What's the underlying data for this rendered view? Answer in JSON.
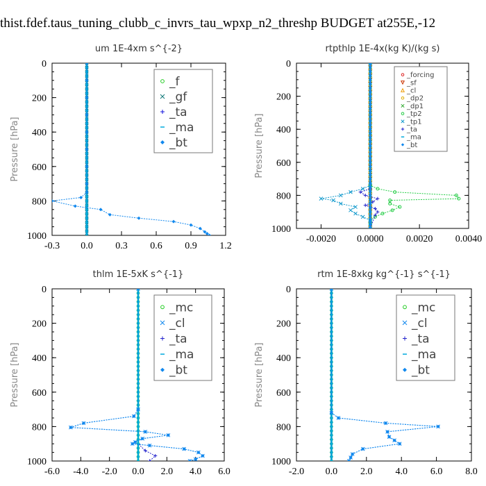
{
  "suptitle": "thist.fdef.taus_tuning_clubb_c_invrs_tau_wpxp_n2_threshp  BUDGET at255E,-12",
  "chart_data": [
    {
      "type": "line",
      "title": "um   1E-4xm s^{-2}",
      "ylabel": "Pressure [hPa]",
      "xlim": [
        -0.3,
        1.2
      ],
      "ylim": [
        1000,
        0
      ],
      "xticks": [
        "-0.3",
        "0.0",
        "0.3",
        "0.6",
        "0.9",
        "1.2"
      ],
      "xtick_values": [
        -0.3,
        0.0,
        0.3,
        0.6,
        0.9,
        1.2
      ],
      "yticks": [
        "0",
        "200",
        "400",
        "600",
        "800",
        "1000"
      ],
      "legend": "top-right",
      "series": [
        {
          "name": "_f",
          "color": "#22cc22",
          "marker": "circle",
          "y": [
            0,
            1000
          ],
          "x": [
            0,
            0
          ]
        },
        {
          "name": "_gf",
          "color": "#117777",
          "marker": "x",
          "y": [
            0,
            150,
            1000
          ],
          "x": [
            0,
            0,
            0
          ]
        },
        {
          "name": "_ta",
          "color": "#1111dd",
          "marker": "plus",
          "y": [
            0,
            750,
            800,
            830,
            860,
            900,
            950,
            1000
          ],
          "x": [
            0,
            0,
            0,
            0,
            0,
            0,
            0,
            0
          ]
        },
        {
          "name": "_ma",
          "color": "#00aadd",
          "marker": "dash",
          "y": [
            0,
            1000
          ],
          "x": [
            0,
            0
          ]
        },
        {
          "name": "_bt",
          "color": "#1188ee",
          "marker": "diamond",
          "y": [
            0,
            100,
            200,
            300,
            400,
            500,
            600,
            700,
            750,
            780,
            800,
            830,
            850,
            880,
            900,
            920,
            940,
            960,
            980,
            990,
            1000
          ],
          "x": [
            0,
            0,
            0,
            0,
            0,
            0,
            0,
            0,
            0,
            -0.05,
            -0.3,
            -0.1,
            0.12,
            0.2,
            0.45,
            0.75,
            0.9,
            0.98,
            1.02,
            1.04,
            1.06
          ]
        }
      ]
    },
    {
      "type": "line",
      "title": "rtpthlp   1E-4x(kg K)/(kg s)",
      "ylabel": "Pressure [hPa]",
      "xlim": [
        -0.003,
        0.004
      ],
      "ylim": [
        1000,
        0
      ],
      "xticks": [
        "-0.0020",
        "0.0000",
        "0.0020",
        "0.0040"
      ],
      "xtick_values": [
        -0.002,
        0.0,
        0.002,
        0.004
      ],
      "yticks": [
        "0",
        "200",
        "400",
        "600",
        "800",
        "1000"
      ],
      "legend": "top-right",
      "series": [
        {
          "name": "_forcing",
          "color": "#dd2222",
          "marker": "circle",
          "y": [
            0,
            1000
          ],
          "x": [
            0,
            0
          ]
        },
        {
          "name": "_sf",
          "color": "#cc3300",
          "marker": "triangle-down",
          "y": [
            0,
            1000
          ],
          "x": [
            0,
            0
          ]
        },
        {
          "name": "_cl",
          "color": "#ee9900",
          "marker": "triangle-up",
          "y": [
            0,
            1000
          ],
          "x": [
            0,
            0
          ]
        },
        {
          "name": "_dp2",
          "color": "#ddaa00",
          "marker": "circle",
          "y": [
            0,
            1000
          ],
          "x": [
            0,
            0
          ]
        },
        {
          "name": "_dp1",
          "color": "#33aa33",
          "marker": "x",
          "y": [
            0,
            1000
          ],
          "x": [
            0,
            0
          ]
        },
        {
          "name": "_tp2",
          "color": "#22cc44",
          "marker": "circle",
          "y": [
            0,
            740,
            760,
            780,
            800,
            820,
            830,
            850,
            870,
            890,
            910,
            930,
            950,
            970,
            1000
          ],
          "x": [
            0,
            0,
            0.0003,
            0.001,
            0.0035,
            0.0036,
            0.0008,
            0.0008,
            0.0012,
            0.0009,
            0.0005,
            0.0002,
            0,
            0,
            0
          ]
        },
        {
          "name": "_tp1",
          "color": "#1199cc",
          "marker": "x",
          "y": [
            0,
            740,
            760,
            780,
            800,
            820,
            830,
            850,
            870,
            890,
            910,
            930,
            950,
            970,
            1000
          ],
          "x": [
            0,
            0,
            -0.0003,
            -0.0008,
            -0.0012,
            -0.002,
            -0.0015,
            -0.0012,
            -0.0006,
            -0.0008,
            -0.0006,
            -0.0003,
            0,
            0,
            0
          ]
        },
        {
          "name": "_ta",
          "color": "#2222cc",
          "marker": "plus",
          "y": [
            0,
            760,
            780,
            800,
            820,
            840,
            860,
            880,
            900,
            920,
            1000
          ],
          "x": [
            0,
            0,
            -0.0004,
            -0.0002,
            0.0003,
            0.0001,
            -0.0002,
            0.0002,
            0.0003,
            0.0002,
            0
          ]
        },
        {
          "name": "_ma",
          "color": "#00aadd",
          "marker": "dash",
          "y": [
            0,
            1000
          ],
          "x": [
            0,
            0
          ]
        },
        {
          "name": "_bt",
          "color": "#1188ee",
          "marker": "diamond",
          "y": [
            0,
            1000
          ],
          "x": [
            0,
            0
          ]
        }
      ]
    },
    {
      "type": "line",
      "title": "thlm   1E-5xK s^{-1}",
      "ylabel": "Pressure [hPa]",
      "xlim": [
        -6.0,
        6.0
      ],
      "ylim": [
        1000,
        0
      ],
      "xticks": [
        "-6.0",
        "-4.0",
        "-2.0",
        "0.0",
        "2.0",
        "4.0",
        "6.0"
      ],
      "xtick_values": [
        -6,
        -4,
        -2,
        0,
        2,
        4,
        6
      ],
      "yticks": [
        "0",
        "200",
        "400",
        "600",
        "800",
        "1000"
      ],
      "legend": "top-right",
      "series": [
        {
          "name": "_mc",
          "color": "#22cc22",
          "marker": "circle",
          "y": [
            0,
            1000
          ],
          "x": [
            0,
            0
          ]
        },
        {
          "name": "_cl",
          "color": "#1188ee",
          "marker": "x",
          "y": [
            0,
            700,
            740,
            780,
            805,
            830,
            850,
            870,
            890,
            900,
            910,
            930,
            950,
            970,
            990,
            1000
          ],
          "x": [
            0,
            0,
            -0.3,
            -3.8,
            -4.7,
            0.5,
            2.1,
            0.3,
            -0.2,
            -0.4,
            0.8,
            3.2,
            4.2,
            4.5,
            4.0,
            3.6
          ]
        },
        {
          "name": "_ta",
          "color": "#2222cc",
          "marker": "plus",
          "y": [
            0,
            900,
            940,
            970,
            1000
          ],
          "x": [
            0,
            0,
            0.5,
            1.2,
            0.8
          ]
        },
        {
          "name": "_ma",
          "color": "#00aadd",
          "marker": "dash",
          "y": [
            0,
            1000
          ],
          "x": [
            0,
            0
          ]
        },
        {
          "name": "_bt",
          "color": "#1188ee",
          "marker": "diamond",
          "y": [
            0,
            700,
            740,
            780,
            805,
            830,
            850,
            870,
            890,
            900,
            910,
            930,
            950,
            970,
            990,
            1000
          ],
          "x": [
            0,
            0,
            -0.3,
            -3.8,
            -4.7,
            0.5,
            2.1,
            0.3,
            -0.2,
            -0.4,
            0.8,
            3.2,
            4.2,
            4.5,
            4.0,
            3.6
          ]
        }
      ]
    },
    {
      "type": "line",
      "title": "rtm   1E-8xkg kg^{-1} s^{-1}",
      "ylabel": "Pressure [hPa]",
      "xlim": [
        -2.0,
        8.0
      ],
      "ylim": [
        1000,
        0
      ],
      "xticks": [
        "-2.0",
        "0.0",
        "2.0",
        "4.0",
        "6.0",
        "8.0"
      ],
      "xtick_values": [
        -2,
        0,
        2,
        4,
        6,
        8
      ],
      "yticks": [
        "0",
        "200",
        "400",
        "600",
        "800",
        "1000"
      ],
      "legend": "top-right",
      "series": [
        {
          "name": "_mc",
          "color": "#22cc22",
          "marker": "circle",
          "y": [
            0,
            1000
          ],
          "x": [
            0,
            0
          ]
        },
        {
          "name": "_cl",
          "color": "#1188ee",
          "marker": "x",
          "y": [
            0,
            720,
            750,
            780,
            800,
            830,
            860,
            880,
            900,
            930,
            960,
            980,
            1000
          ],
          "x": [
            0,
            0,
            0.4,
            3.1,
            6.1,
            3.2,
            3.3,
            3.6,
            3.9,
            1.8,
            1.2,
            1.1,
            1.0
          ]
        },
        {
          "name": "_ta",
          "color": "#2222cc",
          "marker": "plus",
          "y": [
            0,
            1000
          ],
          "x": [
            0,
            0
          ]
        },
        {
          "name": "_ma",
          "color": "#00aadd",
          "marker": "dash",
          "y": [
            0,
            1000
          ],
          "x": [
            0,
            0
          ]
        },
        {
          "name": "_bt",
          "color": "#1188ee",
          "marker": "diamond",
          "y": [
            0,
            720,
            750,
            780,
            800,
            830,
            860,
            880,
            900,
            930,
            960,
            980,
            1000
          ],
          "x": [
            0,
            0,
            0.4,
            3.1,
            6.1,
            3.2,
            3.3,
            3.6,
            3.9,
            1.8,
            1.2,
            1.1,
            1.0
          ]
        }
      ]
    }
  ]
}
